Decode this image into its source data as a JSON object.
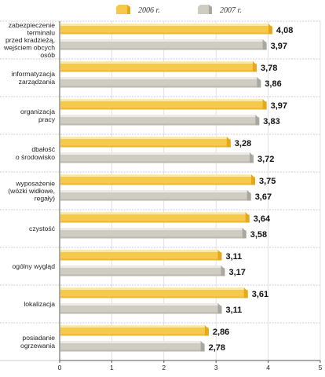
{
  "chart_data": {
    "type": "bar",
    "orientation": "horizontal",
    "categories": [
      [
        "zabezpieczenie",
        "terminalu",
        "przed kradzieżą,",
        "wejściem obcych",
        "osób"
      ],
      [
        "informatyzacja",
        "zarządzania"
      ],
      [
        "organizacja",
        "pracy"
      ],
      [
        "dbałość",
        "o środowisko"
      ],
      [
        "wyposażenie",
        "(wózki widłowe,",
        "regały)"
      ],
      [
        "czystość"
      ],
      [
        "ogólny wygląd"
      ],
      [
        "lokalizacja"
      ],
      [
        "posiadanie",
        "ogrzewania"
      ]
    ],
    "series": [
      {
        "name": "2006 r.",
        "color": "#f6c94a",
        "values": [
          4.08,
          3.78,
          3.97,
          3.28,
          3.75,
          3.64,
          3.11,
          3.61,
          2.86
        ],
        "value_labels": [
          "4,08",
          "3,78",
          "3,97",
          "3,28",
          "3,75",
          "3,64",
          "3,11",
          "3,61",
          "2,86"
        ]
      },
      {
        "name": "2007 r.",
        "color": "#cfcdc3",
        "values": [
          3.97,
          3.86,
          3.83,
          3.72,
          3.67,
          3.58,
          3.17,
          3.11,
          2.78
        ],
        "value_labels": [
          "3,97",
          "3,86",
          "3,83",
          "3,72",
          "3,67",
          "3,58",
          "3,17",
          "3,11",
          "2,78"
        ]
      }
    ],
    "xlim": [
      0,
      5
    ],
    "x_ticks": [
      "0",
      "1",
      "2",
      "3",
      "4",
      "5"
    ],
    "grid": true,
    "legend_position": "top",
    "title": "",
    "xlabel": "",
    "ylabel": ""
  }
}
